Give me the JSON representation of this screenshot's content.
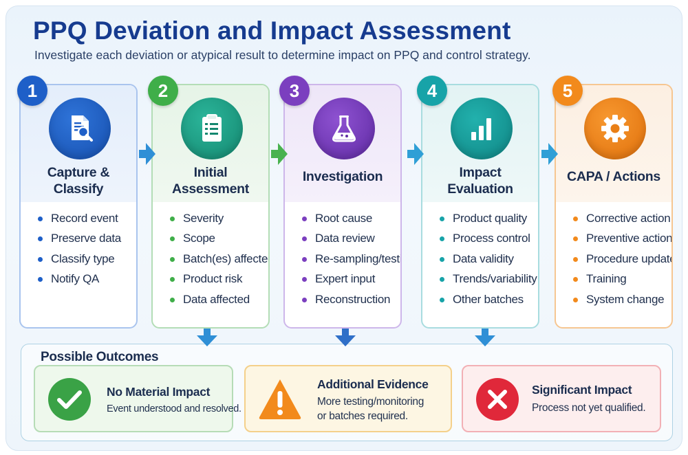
{
  "header": {
    "title": "PPQ Deviation and Impact Assessment",
    "subtitle": "Investigate each deviation or atypical result to determine impact on PPQ and control strategy."
  },
  "steps": [
    {
      "number": "1",
      "title_line1": "Capture &",
      "title_line2": "Classify",
      "icon": "document-search-icon",
      "color": "#1e5fc8",
      "items": [
        "Record event",
        "Preserve data",
        "Classify type",
        "Notify QA"
      ]
    },
    {
      "number": "2",
      "title_line1": "Initial",
      "title_line2": "Assessment",
      "icon": "clipboard-checklist-icon",
      "color": "#3fae49",
      "items": [
        "Severity",
        "Scope",
        "Batch(es) affected",
        "Product risk",
        "Data affected"
      ]
    },
    {
      "number": "3",
      "title_line1": "Investigation",
      "title_line2": "",
      "icon": "flask-icon",
      "color": "#7b3fbf",
      "items": [
        "Root cause",
        "Data review",
        "Re-sampling/testing",
        "Expert input",
        "Reconstruction"
      ]
    },
    {
      "number": "4",
      "title_line1": "Impact",
      "title_line2": "Evaluation",
      "icon": "bar-chart-icon",
      "color": "#17a3a8",
      "items": [
        "Product quality",
        "Process control",
        "Data validity",
        "Trends/variability",
        "Other batches"
      ]
    },
    {
      "number": "5",
      "title_line1": "CAPA / Actions",
      "title_line2": "",
      "icon": "gear-icon",
      "color": "#f28a1c",
      "items": [
        "Corrective action",
        "Preventive action",
        "Procedure update",
        "Training",
        "System change"
      ]
    }
  ],
  "outcomes": {
    "title": "Possible Outcomes",
    "items": [
      {
        "title": "No Material Impact",
        "desc_line1": "Event understood and resolved.",
        "desc_line2": "",
        "icon": "check-icon",
        "color": "#3aa246"
      },
      {
        "title": "Additional Evidence",
        "desc_line1": "More testing/monitoring",
        "desc_line2": "or batches required.",
        "icon": "warning-icon",
        "color": "#f28a1c"
      },
      {
        "title": "Significant Impact",
        "desc_line1": "Process not yet qualified.",
        "desc_line2": "",
        "icon": "x-icon",
        "color": "#e0283a"
      }
    ]
  }
}
